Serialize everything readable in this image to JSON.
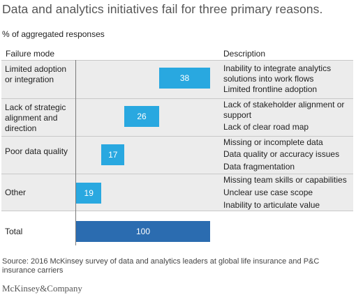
{
  "title": "Data and analytics initiatives fail for three primary reasons.",
  "subtitle": "% of aggregated responses",
  "columns": {
    "failure_mode": "Failure mode",
    "description": "Description"
  },
  "colors": {
    "bar": "#29a8e0",
    "total_bar": "#2b6cb0",
    "band": "#ececec"
  },
  "chart_data": {
    "type": "bar",
    "orientation": "horizontal",
    "categories": [
      "Limited adoption or integration",
      "Lack of strategic alignment and direction",
      "Poor data quality",
      "Other",
      "Total"
    ],
    "values": [
      38,
      26,
      17,
      19,
      100
    ],
    "stacked_offsets": [
      62,
      36,
      19,
      0,
      0
    ],
    "xlim": [
      0,
      100
    ]
  },
  "rows": [
    {
      "mode": "Limited adoption or integration",
      "value": "38",
      "desc": [
        "Inability to integrate analytics solutions into work flows",
        "Limited frontline adoption"
      ]
    },
    {
      "mode": "Lack of strategic alignment and direction",
      "value": "26",
      "desc": [
        "Lack of stakeholder alignment or support",
        "Lack of clear road map"
      ]
    },
    {
      "mode": "Poor data quality",
      "value": "17",
      "desc": [
        "Missing or incomplete data",
        "Data quality or accuracy issues",
        "Data fragmentation"
      ]
    },
    {
      "mode": "Other",
      "value": "19",
      "desc": [
        "Missing team skills or capabilities",
        "Unclear use case scope",
        "Inability to articulate value"
      ]
    }
  ],
  "total": {
    "mode": "Total",
    "value": "100"
  },
  "source": "Source: 2016 McKinsey survey of data and analytics leaders at global life insurance and P&C insurance carriers",
  "brand": "McKinsey&Company"
}
